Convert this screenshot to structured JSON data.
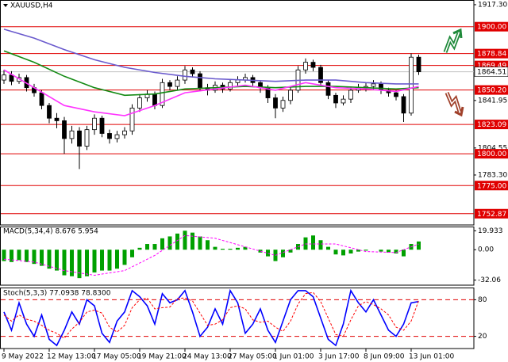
{
  "chart_data": [
    {
      "type": "candlestick",
      "title": "XAUUSD,H4",
      "categories": [
        "9 May 2022",
        null,
        null,
        null,
        null,
        null,
        "12 May 13:00",
        null,
        null,
        null,
        null,
        null,
        "17 May 05:00",
        null,
        null,
        null,
        null,
        null,
        "19 May 21:00",
        null,
        null,
        null,
        null,
        null,
        "24 May 13:00",
        null,
        null,
        null,
        null,
        null,
        "27 May 05:00",
        null,
        null,
        null,
        null,
        null,
        "1 Jun 01:00",
        null,
        null,
        null,
        null,
        null,
        "3 Jun 17:00",
        null,
        null,
        null,
        null,
        null,
        "8 Jun 09:00",
        null,
        null,
        null,
        null,
        null,
        "13 Jun 01:00",
        null
      ],
      "open": [
        1858,
        1862,
        1857,
        1860,
        1852,
        1848,
        1838,
        1828,
        1826,
        1812,
        1818,
        1806,
        1819,
        1828,
        1816,
        1812,
        1815,
        1818,
        1836,
        1844,
        1847,
        1838,
        1856,
        1853,
        1858,
        1866,
        1863,
        1852,
        1850,
        1854,
        1851,
        1856,
        1858,
        1860,
        1856,
        1852,
        1844,
        1836,
        1842,
        1850,
        1866,
        1872,
        1868,
        1856,
        1846,
        1840,
        1843,
        1850,
        1852,
        1853,
        1855,
        1850,
        1848,
        1845,
        1832,
        1876
      ],
      "high": [
        1866,
        1865,
        1863,
        1862,
        1855,
        1850,
        1840,
        1832,
        1829,
        1822,
        1821,
        1822,
        1831,
        1830,
        1819,
        1818,
        1821,
        1839,
        1847,
        1850,
        1849,
        1859,
        1858,
        1861,
        1869,
        1868,
        1865,
        1855,
        1857,
        1856,
        1859,
        1861,
        1863,
        1862,
        1858,
        1854,
        1847,
        1845,
        1853,
        1869,
        1875,
        1874,
        1870,
        1858,
        1848,
        1846,
        1853,
        1855,
        1856,
        1858,
        1857,
        1852,
        1850,
        1847,
        1879,
        1878
      ],
      "low": [
        1855,
        1854,
        1855,
        1849,
        1845,
        1835,
        1824,
        1820,
        1800,
        1808,
        1788,
        1803,
        1815,
        1813,
        1808,
        1809,
        1812,
        1815,
        1833,
        1841,
        1835,
        1836,
        1850,
        1850,
        1855,
        1860,
        1849,
        1846,
        1848,
        1848,
        1849,
        1853,
        1856,
        1853,
        1848,
        1840,
        1828,
        1833,
        1839,
        1848,
        1863,
        1865,
        1853,
        1843,
        1836,
        1838,
        1840,
        1848,
        1849,
        1850,
        1847,
        1845,
        1842,
        1825,
        1830,
        1862
      ],
      "close": [
        1862,
        1857,
        1860,
        1852,
        1848,
        1838,
        1828,
        1826,
        1812,
        1818,
        1806,
        1819,
        1828,
        1816,
        1812,
        1815,
        1818,
        1836,
        1844,
        1847,
        1838,
        1856,
        1853,
        1858,
        1866,
        1863,
        1852,
        1850,
        1854,
        1851,
        1856,
        1858,
        1860,
        1856,
        1852,
        1844,
        1836,
        1842,
        1850,
        1866,
        1872,
        1868,
        1856,
        1846,
        1840,
        1843,
        1850,
        1852,
        1853,
        1855,
        1850,
        1848,
        1845,
        1832,
        1876,
        1864.51
      ],
      "series": [
        {
          "color": "#6a5acd",
          "x": [
            0,
            4,
            8,
            12,
            16,
            20,
            24,
            28,
            32,
            36,
            40,
            44,
            48,
            52,
            55
          ],
          "values": [
            1898,
            1891,
            1882,
            1874,
            1868,
            1864,
            1861,
            1859,
            1858,
            1857,
            1858,
            1858,
            1856,
            1855,
            1855
          ]
        },
        {
          "color": "#138a13",
          "x": [
            0,
            4,
            8,
            12,
            16,
            20,
            24,
            28,
            32,
            36,
            40,
            44,
            48,
            52,
            55
          ],
          "values": [
            1881,
            1872,
            1861,
            1852,
            1846,
            1847,
            1851,
            1852,
            1853,
            1852,
            1853,
            1853,
            1852,
            1851,
            1852
          ]
        },
        {
          "color": "#ff33ff",
          "x": [
            0,
            4,
            8,
            12,
            16,
            20,
            24,
            28,
            32,
            36,
            40,
            44,
            48,
            52,
            55
          ],
          "values": [
            1866,
            1852,
            1838,
            1833,
            1830,
            1838,
            1848,
            1851,
            1854,
            1850,
            1856,
            1852,
            1851,
            1849,
            1853
          ]
        }
      ],
      "ylim": [
        1744,
        1921
      ],
      "yticks": [
        {
          "value": 1917.3,
          "label": "1917.30"
        },
        1841.95,
        1804.55,
        {
          "value": 1783.3,
          "label": "1783.30"
        }
      ],
      "levels": [
        {
          "value": 1900,
          "label": "1900.00"
        },
        1878.84,
        1869.49,
        {
          "value": 1850.2,
          "label": "1850.20"
        },
        1823.09,
        {
          "value": 1800,
          "label": "1800.00"
        },
        {
          "value": 1775,
          "label": "1775.00"
        },
        1752.87
      ],
      "level_color": "#e00000",
      "last_price": 1864.51
    },
    {
      "type": "bar",
      "title": "MACD(5,34,4) 8.676 5.954",
      "series": [
        {
          "type": "bar",
          "color": "#00a000",
          "values": [
            -12,
            -13,
            -11,
            -13,
            -15,
            -17,
            -20,
            -22,
            -27,
            -28,
            -30,
            -28,
            -24,
            -22,
            -22,
            -20,
            -16,
            -8,
            2,
            6,
            6,
            12,
            14,
            17,
            20,
            18,
            14,
            10,
            3,
            1,
            1,
            2,
            3,
            0,
            -3,
            -7,
            -12,
            -8,
            -3,
            6,
            13,
            15,
            10,
            3,
            -5,
            -6,
            -4,
            -2,
            -1,
            0,
            -2,
            -3,
            -4,
            -7,
            6,
            8.676
          ]
        },
        {
          "type": "line",
          "color": "#ff00ff",
          "dashed": true,
          "x": [
            0,
            4,
            8,
            12,
            16,
            20,
            24,
            28,
            32,
            36,
            40,
            44,
            48,
            52,
            55
          ],
          "values": [
            -10,
            -13,
            -22,
            -27,
            -22,
            -6,
            15,
            12,
            3,
            -6,
            6,
            6,
            -2,
            -3,
            5.954
          ]
        }
      ],
      "ylim": [
        -37.4,
        24.4
      ],
      "yticks": [
        19.933,
        {
          "value": 0,
          "label": "0.00"
        },
        -32.06
      ]
    },
    {
      "type": "line",
      "title": "Stoch(5,3,3) 77.0938 78.8300",
      "series": [
        {
          "color": "#0000ff",
          "values": [
            60,
            30,
            75,
            40,
            20,
            55,
            15,
            5,
            30,
            60,
            40,
            80,
            70,
            25,
            10,
            45,
            60,
            95,
            85,
            70,
            40,
            90,
            75,
            80,
            95,
            60,
            20,
            35,
            65,
            40,
            95,
            75,
            25,
            40,
            65,
            30,
            10,
            45,
            80,
            95,
            95,
            85,
            50,
            15,
            5,
            40,
            95,
            75,
            60,
            80,
            55,
            30,
            20,
            40,
            75,
            77.0938
          ]
        },
        {
          "color": "#ff0000",
          "dashed": true,
          "values": [
            55,
            45,
            55,
            48,
            45,
            38,
            30,
            25,
            17,
            32,
            43,
            60,
            63,
            58,
            35,
            27,
            38,
            67,
            80,
            83,
            65,
            67,
            68,
            82,
            83,
            78,
            58,
            38,
            40,
            47,
            67,
            70,
            65,
            47,
            43,
            45,
            35,
            28,
            45,
            73,
            90,
            92,
            77,
            50,
            23,
            20,
            47,
            70,
            77,
            72,
            65,
            55,
            35,
            30,
            45,
            78.83
          ]
        }
      ],
      "ylim": [
        0,
        100
      ],
      "yticks": [
        80,
        20
      ],
      "grid": true,
      "grid_color": "#e00000"
    }
  ]
}
